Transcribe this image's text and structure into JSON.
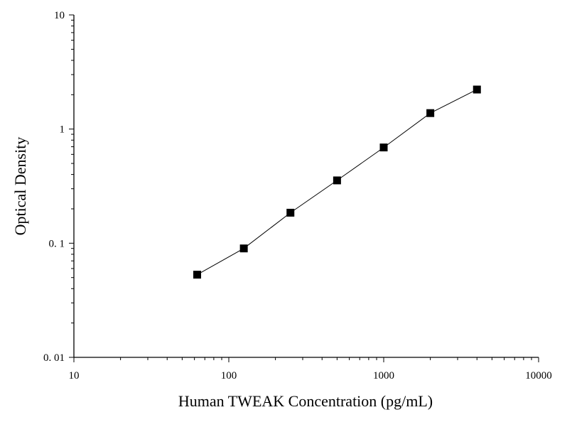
{
  "chart_data": {
    "type": "line",
    "xlabel": "Human TWEAK Concentration (pg/mL)",
    "ylabel": "Optical Density",
    "xscale": "log",
    "yscale": "log",
    "xlim": [
      10,
      10000
    ],
    "ylim": [
      0.01,
      10
    ],
    "grid": false,
    "x_ticks": [
      {
        "value": 10,
        "label": "10"
      },
      {
        "value": 100,
        "label": "100"
      },
      {
        "value": 1000,
        "label": "1000"
      },
      {
        "value": 10000,
        "label": "10000"
      }
    ],
    "y_ticks": [
      {
        "value": 0.01,
        "label": "0. 01"
      },
      {
        "value": 0.1,
        "label": "0. 1"
      },
      {
        "value": 1,
        "label": "1"
      },
      {
        "value": 10,
        "label": "10"
      }
    ],
    "series": [
      {
        "marker": "square",
        "color": "#000000",
        "x": [
          62.5,
          125,
          250,
          500,
          1000,
          2000,
          4000
        ],
        "y": [
          0.053,
          0.09,
          0.185,
          0.355,
          0.69,
          1.38,
          2.22
        ]
      }
    ]
  }
}
